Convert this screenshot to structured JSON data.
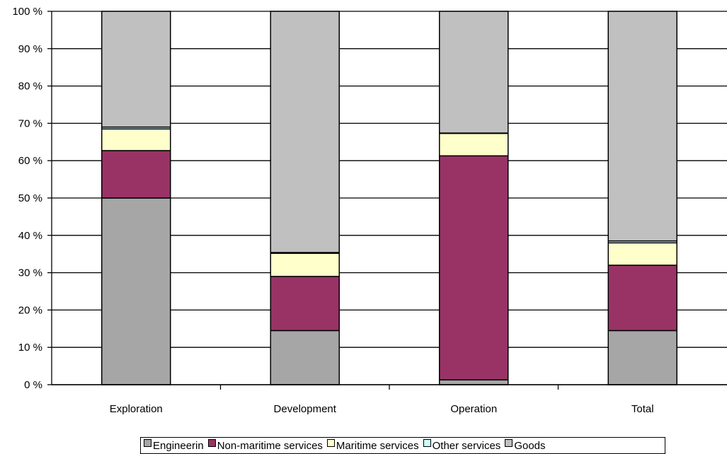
{
  "chart_data": {
    "type": "bar",
    "stacked": true,
    "categories": [
      "Exploration",
      "Development",
      "Operation",
      "Total"
    ],
    "series": [
      {
        "name": "Engineerin",
        "color": "#a6a6a6",
        "values": [
          50,
          14.5,
          1.3,
          14.5
        ]
      },
      {
        "name": "Non-maritime services",
        "color": "#993366",
        "values": [
          12.7,
          14.5,
          60,
          17.5
        ]
      },
      {
        "name": "Maritime services",
        "color": "#ffffcc",
        "values": [
          5.8,
          6.2,
          6,
          6
        ]
      },
      {
        "name": "Other services",
        "color": "#ccffff",
        "values": [
          0.5,
          0.2,
          0.1,
          0.5
        ]
      },
      {
        "name": "Goods",
        "color": "#c0c0c0",
        "values": [
          31,
          64.6,
          32.6,
          61.5
        ]
      }
    ],
    "y_ticks": [
      "0 %",
      "10 %",
      "20 %",
      "30 %",
      "40 %",
      "50 %",
      "60 %",
      "70 %",
      "80 %",
      "90 %",
      "100 %"
    ],
    "ylim": [
      0,
      100
    ],
    "grid": true,
    "legend_position": "bottom"
  }
}
